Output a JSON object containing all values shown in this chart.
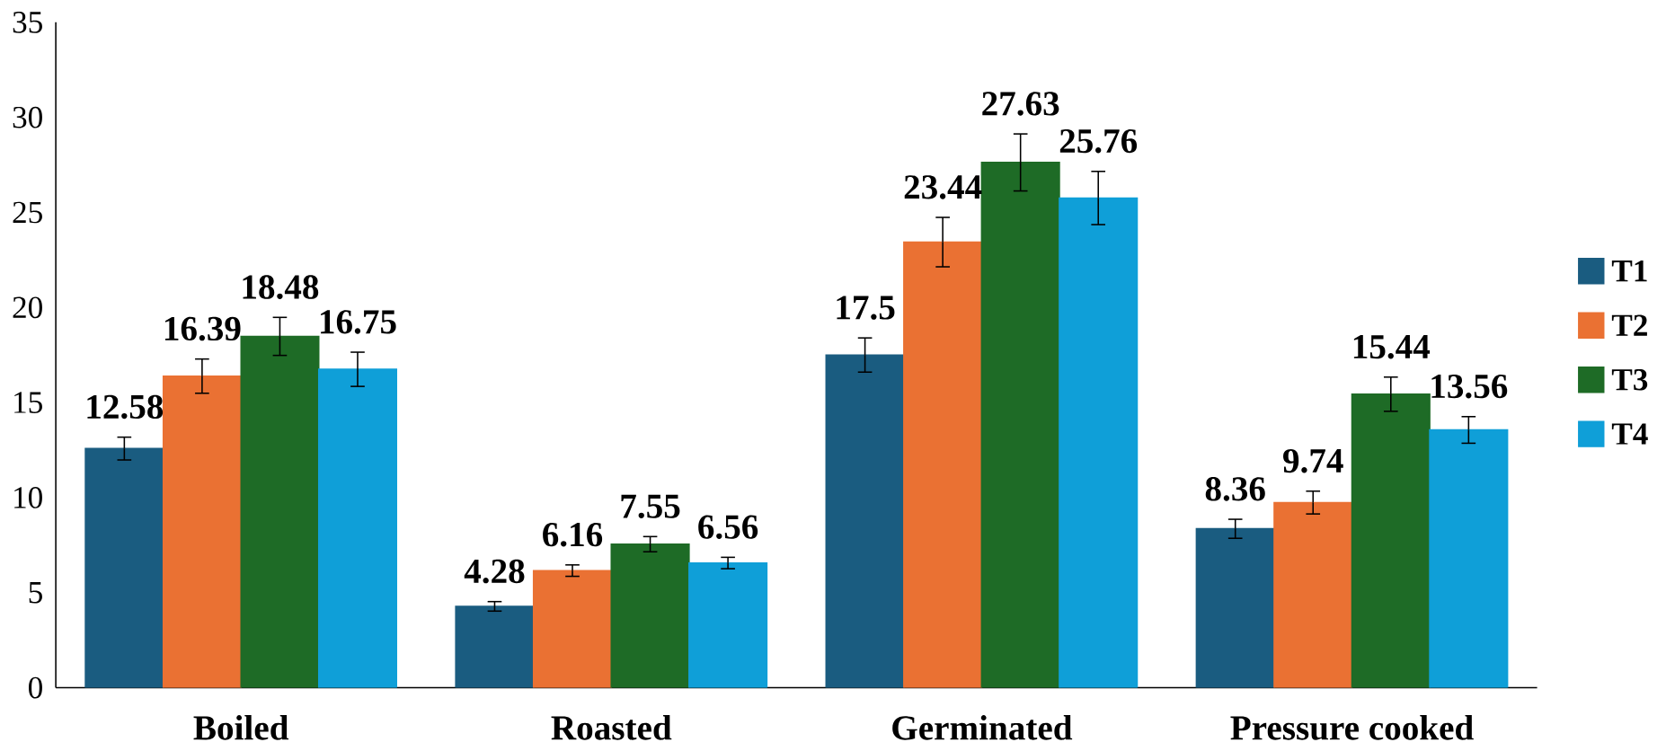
{
  "chart_data": {
    "type": "bar",
    "categories": [
      "Boiled",
      "Roasted",
      "Germinated",
      "Pressure cooked"
    ],
    "series": [
      {
        "name": "T1",
        "color": "#1a5c80",
        "values": [
          12.58,
          4.28,
          17.5,
          8.36
        ],
        "errors": [
          0.6,
          0.25,
          0.9,
          0.5
        ]
      },
      {
        "name": "T2",
        "color": "#ea7133",
        "values": [
          16.39,
          6.16,
          23.44,
          9.74
        ],
        "errors": [
          0.9,
          0.3,
          1.3,
          0.6
        ]
      },
      {
        "name": "T3",
        "color": "#1e6b26",
        "values": [
          18.48,
          7.55,
          27.63,
          15.44
        ],
        "errors": [
          1.0,
          0.4,
          1.5,
          0.9
        ]
      },
      {
        "name": "T4",
        "color": "#0f9fd8",
        "values": [
          16.75,
          6.56,
          25.76,
          13.56
        ],
        "errors": [
          0.9,
          0.3,
          1.4,
          0.7
        ]
      }
    ],
    "ylim": [
      0,
      35
    ],
    "yticks": [
      0,
      5,
      10,
      15,
      20,
      25,
      30,
      35
    ],
    "data_labels": true,
    "legend": "right",
    "grid": false
  }
}
